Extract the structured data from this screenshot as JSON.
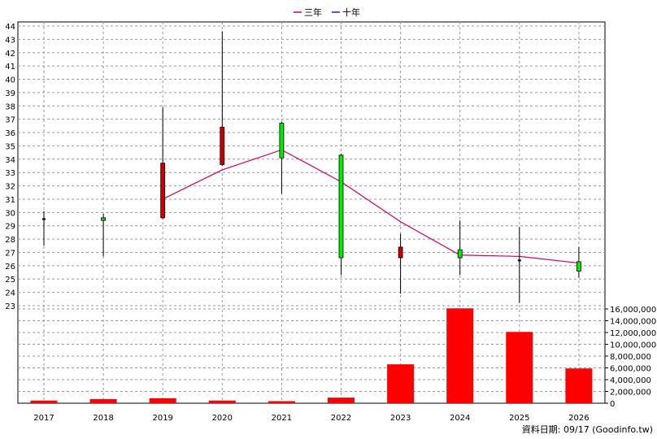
{
  "chart_data": {
    "type": "candlestick",
    "legend": {
      "position": "top-center",
      "items": [
        {
          "label": "三年",
          "color": "#cc0066"
        },
        {
          "label": "十年",
          "color": "#6600cc"
        }
      ]
    },
    "categories": [
      "2017",
      "2018",
      "2019",
      "2020",
      "2021",
      "2022",
      "2023",
      "2024",
      "2025",
      "2026"
    ],
    "price_axis": {
      "min": 23,
      "max": 44,
      "ticks": [
        "23",
        "24",
        "25",
        "26",
        "27",
        "28",
        "29",
        "30",
        "31",
        "32",
        "33",
        "34",
        "35",
        "36",
        "37",
        "38",
        "39",
        "40",
        "41",
        "42",
        "43",
        "44"
      ]
    },
    "volume_axis": {
      "min": 0,
      "max": 16000000,
      "ticks": [
        "0",
        "2,000,000",
        "4,000,000",
        "6,000,000",
        "8,000,000",
        "10,000,000",
        "12,000,000",
        "14,000,000",
        "16,000,000"
      ]
    },
    "candles": [
      {
        "year": "2017",
        "open": 29.5,
        "close": 29.5,
        "high": 30.1,
        "low": 27.5
      },
      {
        "year": "2018",
        "open": 29.6,
        "close": 29.4,
        "high": 29.9,
        "low": 26.7
      },
      {
        "year": "2019",
        "open": 29.6,
        "close": 33.7,
        "high": 37.9,
        "low": 29.5
      },
      {
        "year": "2020",
        "open": 33.6,
        "close": 36.4,
        "high": 43.6,
        "low": 33.5
      },
      {
        "year": "2021",
        "open": 36.7,
        "close": 34.1,
        "high": 36.8,
        "low": 31.4
      },
      {
        "year": "2022",
        "open": 34.3,
        "close": 26.6,
        "high": 34.4,
        "low": 25.3
      },
      {
        "year": "2023",
        "open": 26.6,
        "close": 27.4,
        "high": 28.4,
        "low": 23.9
      },
      {
        "year": "2024",
        "open": 27.2,
        "close": 26.6,
        "high": 29.4,
        "low": 25.3
      },
      {
        "year": "2025",
        "open": 26.4,
        "close": 26.3,
        "high": 28.9,
        "low": 23.2
      },
      {
        "year": "2026",
        "open": 26.3,
        "close": 25.6,
        "high": 27.4,
        "low": 25.1
      }
    ],
    "line_series": [
      {
        "name": "三年",
        "color": "#cc0066",
        "points": [
          [
            "2019",
            31.0
          ],
          [
            "2020",
            33.2
          ],
          [
            "2021",
            34.7
          ],
          [
            "2022",
            32.3
          ],
          [
            "2023",
            29.3
          ],
          [
            "2024",
            26.8
          ],
          [
            "2025",
            26.7
          ],
          [
            "2026",
            26.2
          ]
        ]
      }
    ],
    "volume": [
      {
        "year": "2017",
        "value": 450000
      },
      {
        "year": "2018",
        "value": 700000
      },
      {
        "year": "2019",
        "value": 850000
      },
      {
        "year": "2020",
        "value": 450000
      },
      {
        "year": "2021",
        "value": 350000
      },
      {
        "year": "2022",
        "value": 950000
      },
      {
        "year": "2023",
        "value": 6600000
      },
      {
        "year": "2024",
        "value": 16100000
      },
      {
        "year": "2025",
        "value": 12100000
      },
      {
        "year": "2026",
        "value": 5900000
      }
    ],
    "colors": {
      "up": "#cc0000",
      "down": "#00ee00",
      "volume": "#ff0000",
      "grid": "#999999",
      "frame": "#000000"
    },
    "grid": true
  },
  "footer": {
    "credit": "資料日期: 09/17  (Goodinfo.tw)"
  }
}
